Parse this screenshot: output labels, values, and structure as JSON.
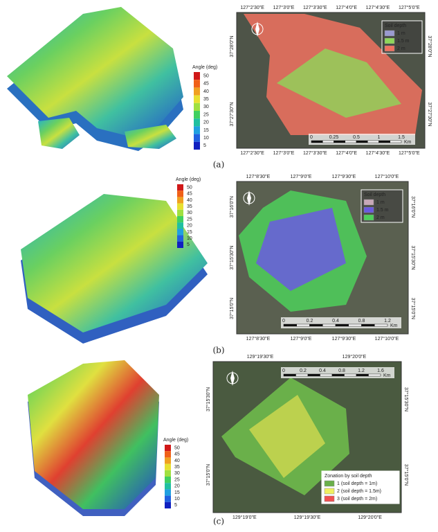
{
  "panels": [
    {
      "label": "(a)",
      "angle_legend": {
        "title": "Angle (deg)",
        "ticks": [
          50,
          45,
          40,
          35,
          30,
          25,
          20,
          15,
          10,
          5
        ]
      },
      "map": {
        "top_ticks": [
          "127°2'30\"E",
          "127°3'0\"E",
          "127°3'30\"E",
          "127°4'0\"E",
          "127°4'30\"E",
          "127°5'0\"E"
        ],
        "bottom_ticks": [
          "127°2'30\"E",
          "127°3'0\"E",
          "127°3'30\"E",
          "127°4'0\"E",
          "127°4'30\"E",
          "127°5'0\"E"
        ],
        "left_ticks": [
          "37°28'0\"N",
          "37°27'30\"N"
        ],
        "right_ticks": [
          "37°28'0\"N",
          "37°27'30\"N"
        ],
        "legend_title": "Soil depth",
        "legend_items": [
          {
            "label": "1 m",
            "color": "#9a9ad0"
          },
          {
            "label": "1.5 m",
            "color": "#8fd65a"
          },
          {
            "label": "2 m",
            "color": "#f07060"
          }
        ],
        "scale_labels": [
          "0",
          "0.25",
          "0.5",
          "1",
          "1.5"
        ],
        "scale_unit": "Km"
      }
    },
    {
      "label": "(b)",
      "angle_legend": {
        "title": "Angle (deg)",
        "ticks": [
          50,
          45,
          40,
          35,
          30,
          25,
          20,
          15,
          10,
          5
        ]
      },
      "map": {
        "top_ticks": [
          "127°8'30\"E",
          "127°9'0\"E",
          "127°9'30\"E",
          "127°10'0\"E"
        ],
        "bottom_ticks": [
          "127°8'30\"E",
          "127°9'0\"E",
          "127°9'30\"E",
          "127°10'0\"E"
        ],
        "left_ticks": [
          "37°16'0\"N",
          "37°15'30\"N",
          "37°15'0\"N"
        ],
        "right_ticks": [
          "37°16'0\"N",
          "37°15'30\"N",
          "37°15'0\"N"
        ],
        "legend_title": "Soil depth",
        "legend_items": [
          {
            "label": "1 m",
            "color": "#c8a8b8"
          },
          {
            "label": "1.5 m",
            "color": "#6a5ae0"
          },
          {
            "label": "2 m",
            "color": "#4ed05a"
          }
        ],
        "scale_labels": [
          "0",
          "0.2",
          "0.4",
          "0.8",
          "1.2"
        ],
        "scale_unit": "Km"
      }
    },
    {
      "label": "(c)",
      "angle_legend": {
        "title": "Angle (deg)",
        "ticks": [
          50,
          45,
          40,
          35,
          30,
          25,
          20,
          15,
          10,
          5
        ]
      },
      "map": {
        "top_ticks": [
          "129°19'30\"E",
          "129°20'0\"E"
        ],
        "bottom_ticks": [
          "129°19'0\"E",
          "129°19'30\"E",
          "129°20'0\"E"
        ],
        "left_ticks": [
          "37°15'30\"N",
          "37°15'0\"N"
        ],
        "right_ticks": [
          "37°15'30\"N",
          "37°15'0\"N"
        ],
        "legend_title": "Zonation by soil depth",
        "legend_items": [
          {
            "label": "1 (soil depth = 1m)",
            "color": "#6ab04a"
          },
          {
            "label": "2 (soil depth = 1.5m)",
            "color": "#f0f060"
          },
          {
            "label": "3 (soil depth = 2m)",
            "color": "#f05050"
          }
        ],
        "scale_labels": [
          "0",
          "0.2",
          "0.4",
          "0.8",
          "1.2",
          "1.6"
        ],
        "scale_unit": "Km"
      }
    }
  ]
}
